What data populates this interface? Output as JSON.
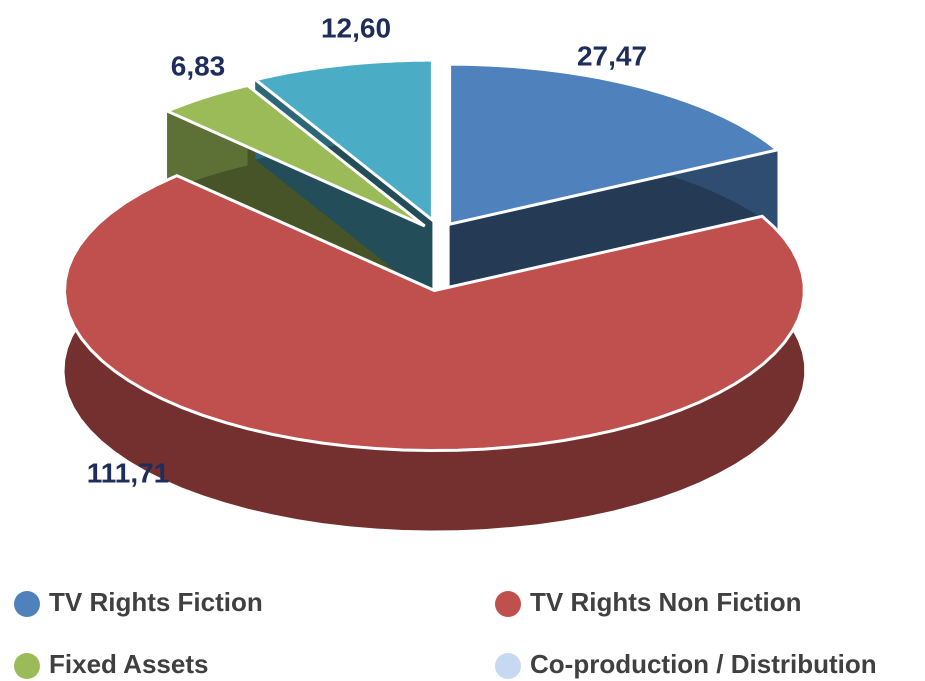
{
  "chart_data": {
    "type": "pie3d",
    "categories": [
      "TV Rights Fiction",
      "TV Rights Non Fiction",
      "Fixed Assets",
      "Co-production / Distribution"
    ],
    "values": [
      27.47,
      111.71,
      6.83,
      12.6
    ],
    "value_labels": [
      "27,47",
      "111,71",
      "6,83",
      "12,60"
    ],
    "colors": [
      "#4f81bd",
      "#c0504d",
      "#9bbb59",
      "#4bacc6"
    ],
    "legend_colors": [
      "#4f81bd",
      "#c0504d",
      "#9bbb59",
      "#c6d9f1"
    ],
    "legend": "bottom"
  }
}
